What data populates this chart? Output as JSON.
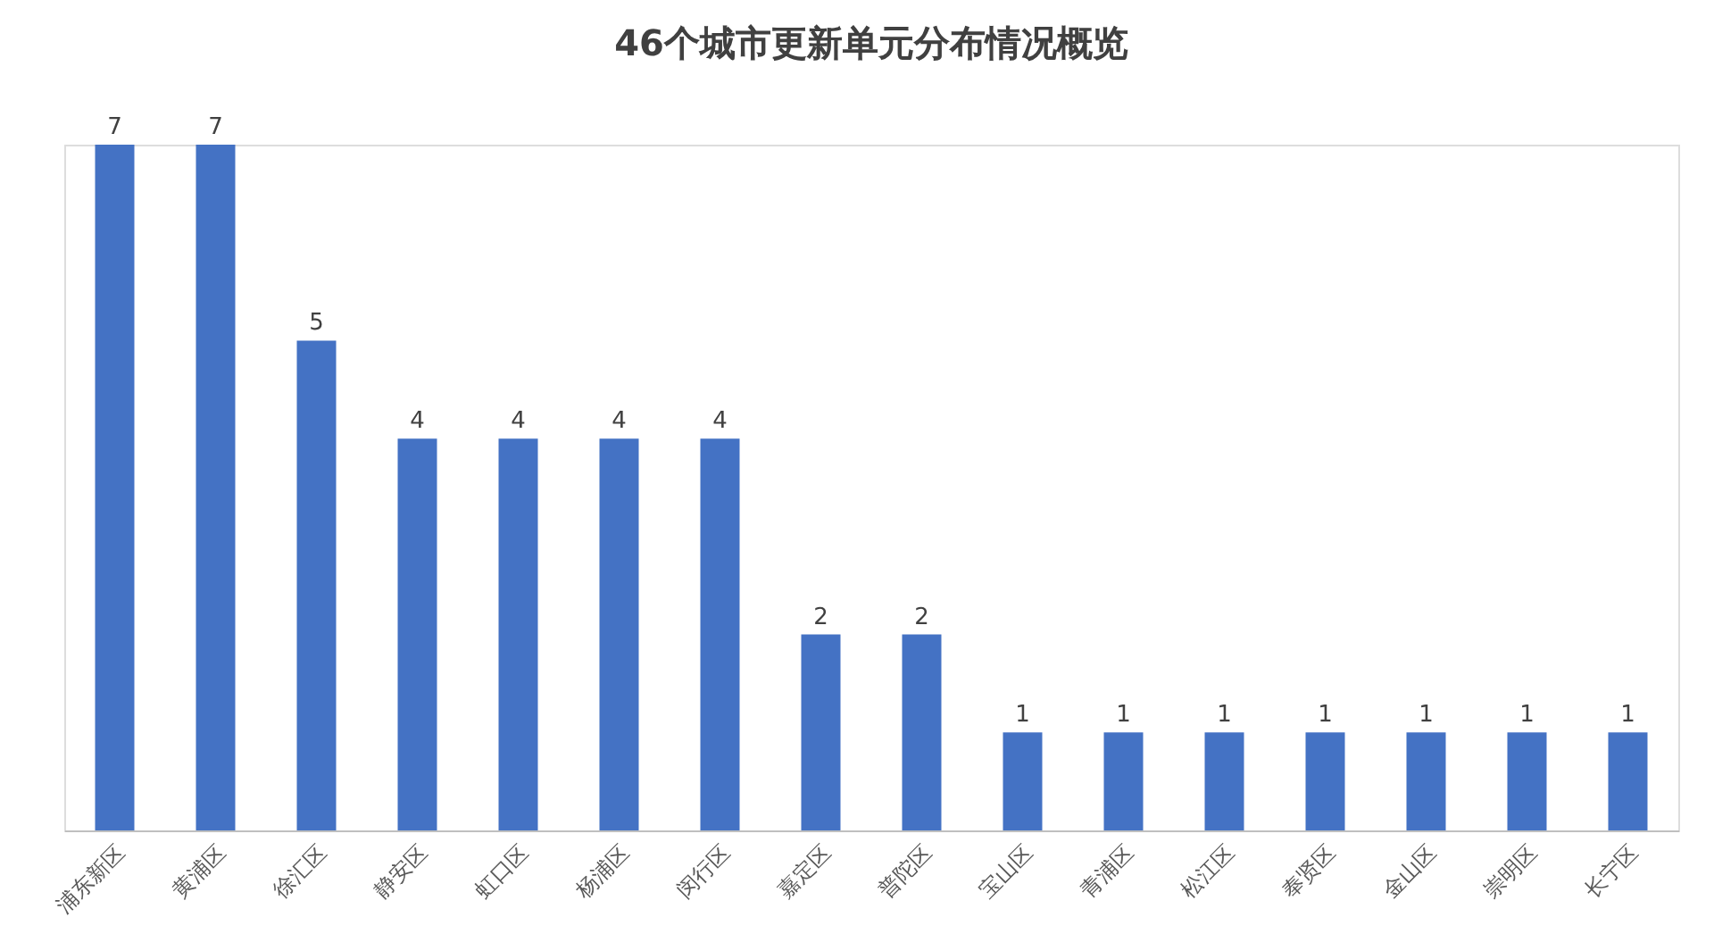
{
  "chart_data": {
    "type": "bar",
    "title": "46个城市更新单元分布情况概览",
    "categories": [
      "浦东新区",
      "黄浦区",
      "徐汇区",
      "静安区",
      "虹口区",
      "杨浦区",
      "闵行区",
      "嘉定区",
      "普陀区",
      "宝山区",
      "青浦区",
      "松江区",
      "奉贤区",
      "金山区",
      "崇明区",
      "长宁区"
    ],
    "values": [
      7,
      7,
      5,
      4,
      4,
      4,
      4,
      2,
      2,
      1,
      1,
      1,
      1,
      1,
      1,
      1
    ],
    "color": "#4472c4",
    "data_labels": true
  }
}
